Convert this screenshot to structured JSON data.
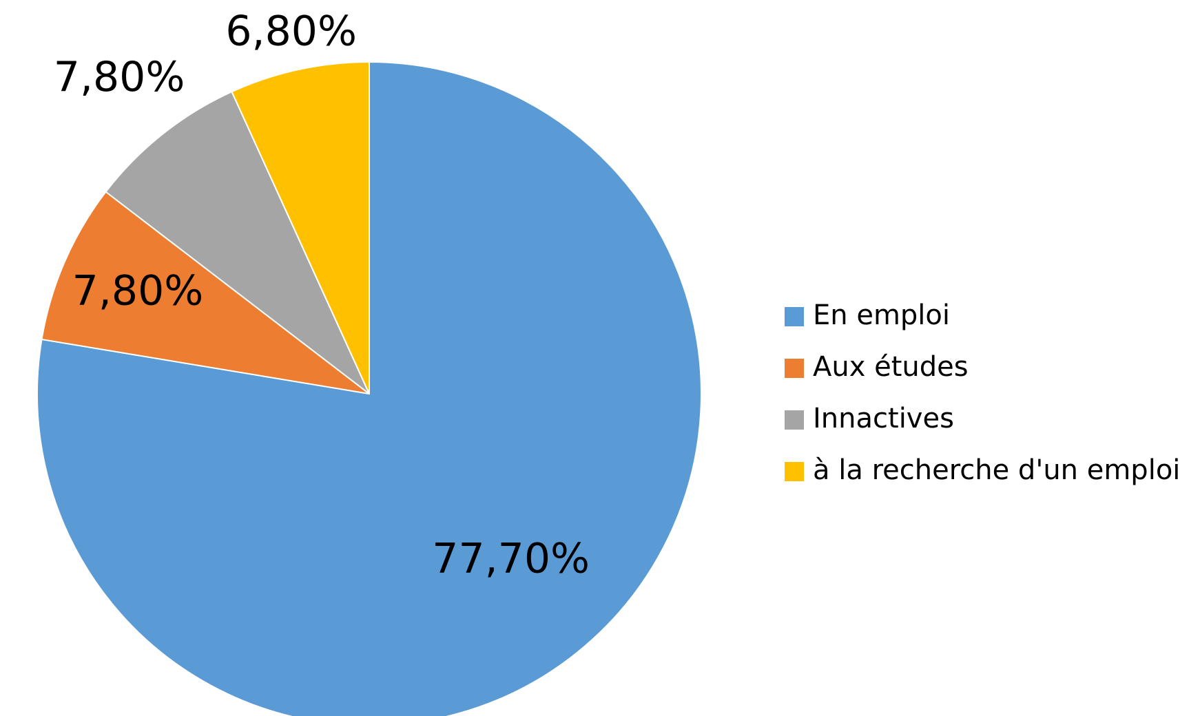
{
  "chart_data": {
    "type": "pie",
    "categories": [
      "En emploi",
      "Aux études",
      "Innactives",
      "à la recherche d'un emploi"
    ],
    "values": [
      77.7,
      7.8,
      7.8,
      6.8
    ],
    "value_labels": [
      "77,70%",
      "7,80%",
      "7,80%",
      "6,80%"
    ],
    "colors": [
      "#5b9bd5",
      "#ed7d31",
      "#a5a5a5",
      "#ffc000"
    ],
    "legend": "right"
  }
}
